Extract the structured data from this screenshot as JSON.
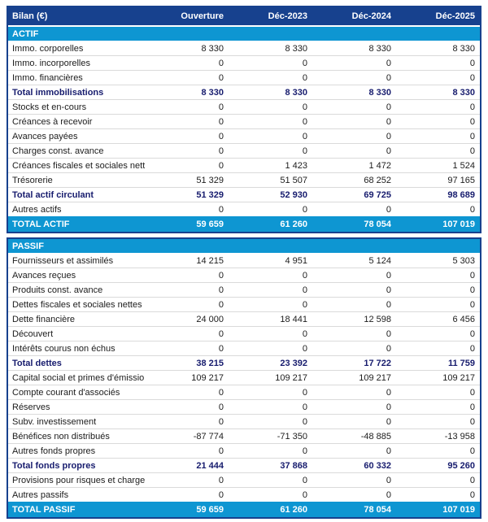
{
  "colors": {
    "header_navy": "#17418e",
    "band_cyan": "#0e96d2",
    "subtotal_text_navy": "#171c6e",
    "row_divider_gray": "#dadada"
  },
  "table": {
    "corner_label": "Bilan (€)",
    "columns": [
      "Ouverture",
      "Déc-2023",
      "Déc-2024",
      "Déc-2025"
    ],
    "sections": [
      {
        "title": "ACTIF",
        "rows": [
          {
            "label": "Immo. corporelles",
            "values": [
              "8 330",
              "8 330",
              "8 330",
              "8 330"
            ],
            "bold": false
          },
          {
            "label": "Immo. incorporelles",
            "values": [
              "0",
              "0",
              "0",
              "0"
            ],
            "bold": false
          },
          {
            "label": "Immo. financières",
            "values": [
              "0",
              "0",
              "0",
              "0"
            ],
            "bold": false
          },
          {
            "label": "Total immobilisations",
            "values": [
              "8 330",
              "8 330",
              "8 330",
              "8 330"
            ],
            "bold": true
          },
          {
            "label": "Stocks et en-cours",
            "values": [
              "0",
              "0",
              "0",
              "0"
            ],
            "bold": false
          },
          {
            "label": "Créances à recevoir",
            "values": [
              "0",
              "0",
              "0",
              "0"
            ],
            "bold": false
          },
          {
            "label": "Avances payées",
            "values": [
              "0",
              "0",
              "0",
              "0"
            ],
            "bold": false
          },
          {
            "label": "Charges const. avance",
            "values": [
              "0",
              "0",
              "0",
              "0"
            ],
            "bold": false
          },
          {
            "label": "Créances fiscales et sociales nettes",
            "values": [
              "0",
              "1 423",
              "1 472",
              "1 524"
            ],
            "bold": false
          },
          {
            "label": "Trésorerie",
            "values": [
              "51 329",
              "51 507",
              "68 252",
              "97 165"
            ],
            "bold": false
          },
          {
            "label": "Total actif circulant",
            "values": [
              "51 329",
              "52 930",
              "69 725",
              "98 689"
            ],
            "bold": true
          },
          {
            "label": "Autres actifs",
            "values": [
              "0",
              "0",
              "0",
              "0"
            ],
            "bold": false
          }
        ],
        "total": {
          "label": "TOTAL ACTIF",
          "values": [
            "59 659",
            "61 260",
            "78 054",
            "107 019"
          ]
        }
      },
      {
        "title": "PASSIF",
        "rows": [
          {
            "label": "Fournisseurs et assimilés",
            "values": [
              "14 215",
              "4 951",
              "5 124",
              "5 303"
            ],
            "bold": false
          },
          {
            "label": "Avances reçues",
            "values": [
              "0",
              "0",
              "0",
              "0"
            ],
            "bold": false
          },
          {
            "label": "Produits const. avance",
            "values": [
              "0",
              "0",
              "0",
              "0"
            ],
            "bold": false
          },
          {
            "label": "Dettes fiscales et sociales nettes",
            "values": [
              "0",
              "0",
              "0",
              "0"
            ],
            "bold": false
          },
          {
            "label": "Dette financière",
            "values": [
              "24 000",
              "18 441",
              "12 598",
              "6 456"
            ],
            "bold": false
          },
          {
            "label": "Découvert",
            "values": [
              "0",
              "0",
              "0",
              "0"
            ],
            "bold": false
          },
          {
            "label": "Intérêts courus non échus",
            "values": [
              "0",
              "0",
              "0",
              "0"
            ],
            "bold": false
          },
          {
            "label": "Total dettes",
            "values": [
              "38 215",
              "23 392",
              "17 722",
              "11 759"
            ],
            "bold": true
          },
          {
            "label": "Capital social et primes d'émission",
            "values": [
              "109 217",
              "109 217",
              "109 217",
              "109 217"
            ],
            "bold": false
          },
          {
            "label": "Compte courant d'associés",
            "values": [
              "0",
              "0",
              "0",
              "0"
            ],
            "bold": false
          },
          {
            "label": "Réserves",
            "values": [
              "0",
              "0",
              "0",
              "0"
            ],
            "bold": false
          },
          {
            "label": "Subv. investissement",
            "values": [
              "0",
              "0",
              "0",
              "0"
            ],
            "bold": false
          },
          {
            "label": "Bénéfices non distribués",
            "values": [
              "-87 774",
              "-71 350",
              "-48 885",
              "-13 958"
            ],
            "bold": false
          },
          {
            "label": "Autres fonds propres",
            "values": [
              "0",
              "0",
              "0",
              "0"
            ],
            "bold": false
          },
          {
            "label": "Total fonds propres",
            "values": [
              "21 444",
              "37 868",
              "60 332",
              "95 260"
            ],
            "bold": true
          },
          {
            "label": "Provisions pour risques et charges",
            "values": [
              "0",
              "0",
              "0",
              "0"
            ],
            "bold": false
          },
          {
            "label": "Autres passifs",
            "values": [
              "0",
              "0",
              "0",
              "0"
            ],
            "bold": false
          }
        ],
        "total": {
          "label": "TOTAL PASSIF",
          "values": [
            "59 659",
            "61 260",
            "78 054",
            "107 019"
          ]
        }
      }
    ]
  }
}
